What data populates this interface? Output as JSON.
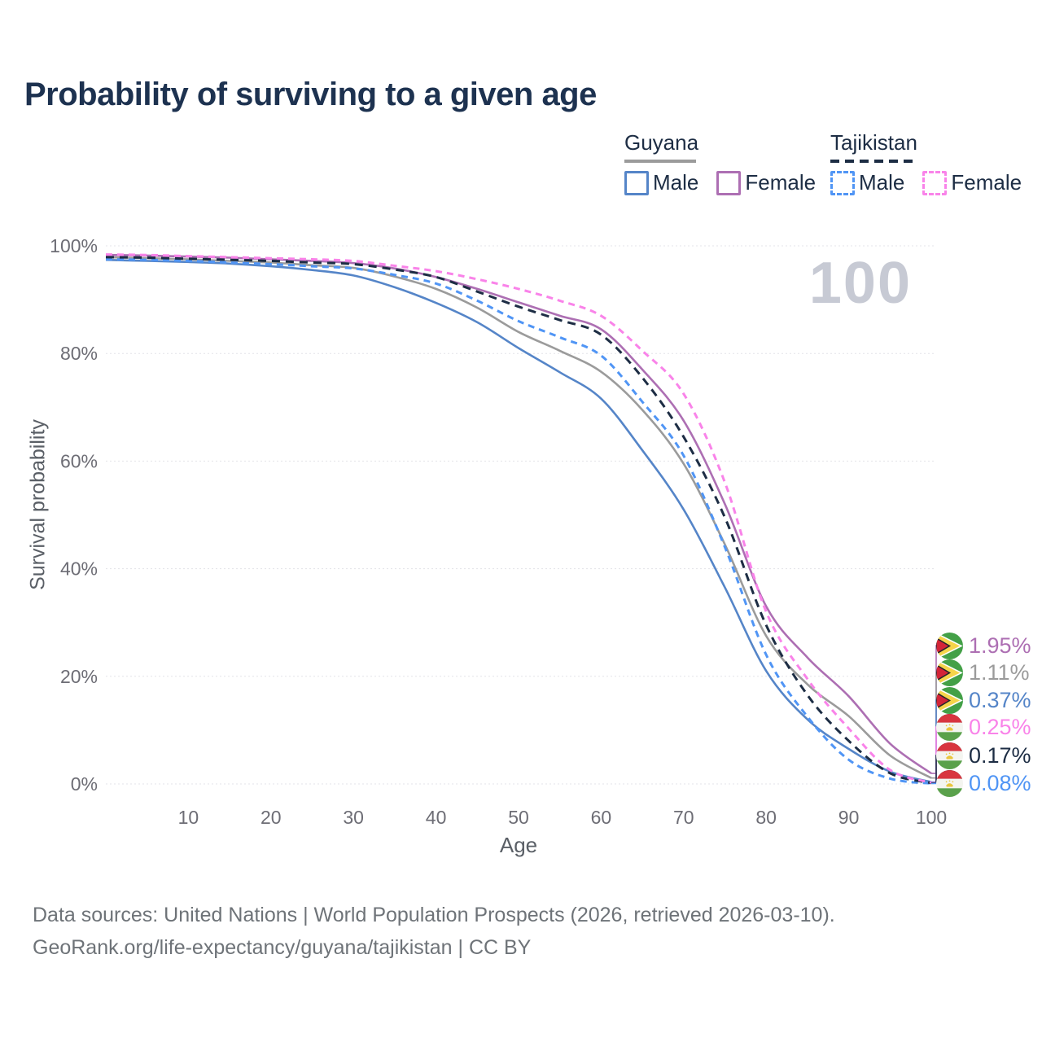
{
  "title": "Probability of surviving to a given age",
  "watermark_age": "100",
  "legend": {
    "groups": [
      {
        "country": "Guyana",
        "line_style": "solid",
        "underline_color": "#9b9b9b",
        "items": [
          {
            "label": "Male",
            "color": "#5585c8"
          },
          {
            "label": "Female",
            "color": "#ad6fb3"
          }
        ]
      },
      {
        "country": "Tajikistan",
        "line_style": "dashed",
        "underline_color": "#1d2d44",
        "items": [
          {
            "label": "Male",
            "color": "#5095f5"
          },
          {
            "label": "Female",
            "color": "#f983e9"
          }
        ]
      }
    ]
  },
  "chart_data": {
    "type": "line",
    "title": "Probability of surviving to a given age",
    "xlabel": "Age",
    "ylabel": "Survival probability",
    "xlim": [
      0,
      100
    ],
    "ylim": [
      0,
      100
    ],
    "grid": "horizontal",
    "legend_position": "top-right",
    "x_ticks": [
      10,
      20,
      30,
      40,
      50,
      60,
      70,
      80,
      90,
      100
    ],
    "y_ticks_percent": [
      0,
      20,
      40,
      60,
      80,
      100
    ],
    "ages": [
      0,
      5,
      10,
      15,
      20,
      25,
      30,
      35,
      40,
      45,
      50,
      55,
      60,
      65,
      70,
      75,
      80,
      85,
      90,
      95,
      100
    ],
    "series": [
      {
        "key": "guyana-male",
        "country": "Guyana",
        "sex": "Male",
        "label": "Guyana Male",
        "color": "#5585c8",
        "dash": null,
        "flag": "guyana",
        "end_label": "0.37%",
        "values_percent": [
          97.4,
          97.2,
          97.0,
          96.7,
          96.2,
          95.5,
          94.5,
          92.3,
          89.4,
          85.8,
          81.0,
          76.5,
          71.6,
          62.0,
          51.0,
          36.5,
          21.0,
          12.0,
          6.5,
          2.3,
          0.37
        ]
      },
      {
        "key": "guyana-all",
        "country": "Guyana",
        "sex": "All",
        "label": "Guyana (both sexes)",
        "color": "#9b9b9b",
        "dash": null,
        "flag": "guyana",
        "end_label": "1.11%",
        "values_percent": [
          97.9,
          97.7,
          97.5,
          97.2,
          96.9,
          96.4,
          95.9,
          94.3,
          92.0,
          88.5,
          84.0,
          80.5,
          76.6,
          69.5,
          59.5,
          44.5,
          27.5,
          18.5,
          12.6,
          5.3,
          1.11
        ]
      },
      {
        "key": "guyana-female",
        "country": "Guyana",
        "sex": "Female",
        "label": "Guyana Female",
        "color": "#ad6fb3",
        "dash": null,
        "flag": "guyana",
        "end_label": "1.95%",
        "values_percent": [
          98.3,
          98.2,
          98.0,
          97.8,
          97.5,
          97.2,
          96.8,
          95.8,
          94.2,
          92.0,
          89.5,
          87.0,
          84.5,
          77.0,
          67.5,
          52.0,
          33.0,
          23.5,
          16.3,
          7.5,
          1.95
        ]
      },
      {
        "key": "tajikistan-male",
        "country": "Tajikistan",
        "sex": "Male",
        "label": "Tajikistan Male",
        "color": "#5095f5",
        "dash": [
          8,
          6
        ],
        "flag": "tajikistan",
        "end_label": "0.08%",
        "values_percent": [
          97.5,
          97.4,
          97.2,
          96.9,
          96.6,
          96.2,
          95.8,
          94.6,
          93.0,
          89.8,
          86.0,
          83.0,
          79.6,
          71.0,
          61.0,
          44.0,
          24.0,
          12.5,
          4.5,
          1.0,
          0.08
        ]
      },
      {
        "key": "tajikistan-all",
        "country": "Tajikistan",
        "sex": "All",
        "label": "Tajikistan (both sexes)",
        "color": "#1d2d44",
        "dash": [
          10,
          7
        ],
        "flag": "tajikistan",
        "end_label": "0.17%",
        "values_percent": [
          97.9,
          97.8,
          97.6,
          97.4,
          97.2,
          96.9,
          96.6,
          95.6,
          94.2,
          91.5,
          88.7,
          86.2,
          83.5,
          75.5,
          64.5,
          49.5,
          29.5,
          16.5,
          8.0,
          2.0,
          0.17
        ]
      },
      {
        "key": "tajikistan-female",
        "country": "Tajikistan",
        "sex": "Female",
        "label": "Tajikistan Female",
        "color": "#f983e9",
        "dash": [
          8,
          6
        ],
        "flag": "tajikistan",
        "end_label": "0.25%",
        "values_percent": [
          98.4,
          98.3,
          98.1,
          97.9,
          97.7,
          97.5,
          97.2,
          96.3,
          95.3,
          93.8,
          92.0,
          89.8,
          87.0,
          80.5,
          72.5,
          56.0,
          32.0,
          19.5,
          10.3,
          2.6,
          0.25
        ]
      }
    ]
  },
  "footer": {
    "line1": "Data sources: United Nations | World Population Prospects (2026, retrieved 2026-03-10).",
    "line2": "GeoRank.org/life-expectancy/guyana/tajikistan | CC BY"
  }
}
